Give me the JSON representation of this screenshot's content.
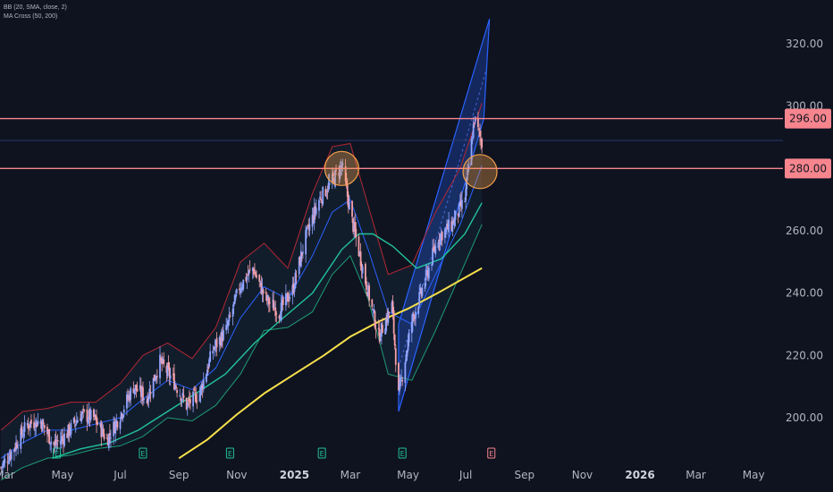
{
  "legend": {
    "line1": "BB (20, SMA, close, 2)",
    "line2": "MA Cross (50, 200)"
  },
  "colors": {
    "background": "#0f1320",
    "resistance": "#f7858e",
    "bb_upper": "#b22833",
    "bb_lower": "#1e9b74",
    "bb_basis": "#2962ff",
    "ma50": "#22c39a",
    "ma200": "#f7e04b",
    "channel": "#2962ff",
    "circle": "#f5a04a",
    "candle_up": "#90a4ff",
    "candle_down": "#f5a0a8"
  },
  "chart_data": {
    "type": "candlestick",
    "title": "",
    "xlabel": "",
    "ylabel": "",
    "ylim": [
      182,
      332
    ],
    "y_ticks": [
      200,
      220,
      240,
      260,
      280,
      300,
      320
    ],
    "y_tick_labels": [
      "200.00",
      "220.00",
      "240.00",
      "260.00",
      "280.00",
      "300.00",
      "320.00"
    ],
    "x_ticks": [
      {
        "label": "Mar",
        "date": "2024-03-01"
      },
      {
        "label": "May",
        "date": "2024-05-01"
      },
      {
        "label": "Jul",
        "date": "2024-07-01"
      },
      {
        "label": "Sep",
        "date": "2024-09-01"
      },
      {
        "label": "Nov",
        "date": "2024-11-01"
      },
      {
        "label": "2025",
        "date": "2025-01-01",
        "bold": true
      },
      {
        "label": "Mar",
        "date": "2025-03-01"
      },
      {
        "label": "May",
        "date": "2025-05-01"
      },
      {
        "label": "Jul",
        "date": "2025-07-01"
      },
      {
        "label": "Sep",
        "date": "2025-09-01"
      },
      {
        "label": "Nov",
        "date": "2025-11-01"
      },
      {
        "label": "2026",
        "date": "2026-01-01",
        "bold": true
      },
      {
        "label": "Mar",
        "date": "2026-03-01"
      },
      {
        "label": "May",
        "date": "2026-05-01"
      }
    ],
    "x_range": [
      "2024-02-25",
      "2026-06-01"
    ],
    "close_path": [
      [
        "2024-02-26",
        184
      ],
      [
        "2024-03-10",
        190
      ],
      [
        "2024-03-25",
        198
      ],
      [
        "2024-04-08",
        199
      ],
      [
        "2024-04-22",
        191
      ],
      [
        "2024-05-06",
        195
      ],
      [
        "2024-05-20",
        201
      ],
      [
        "2024-06-03",
        200
      ],
      [
        "2024-06-17",
        193
      ],
      [
        "2024-07-01",
        201
      ],
      [
        "2024-07-15",
        210
      ],
      [
        "2024-07-29",
        206
      ],
      [
        "2024-08-12",
        218
      ],
      [
        "2024-08-26",
        212
      ],
      [
        "2024-09-09",
        204
      ],
      [
        "2024-09-23",
        208
      ],
      [
        "2024-10-07",
        222
      ],
      [
        "2024-10-21",
        228
      ],
      [
        "2024-11-04",
        242
      ],
      [
        "2024-11-18",
        248
      ],
      [
        "2024-12-02",
        238
      ],
      [
        "2024-12-16",
        234
      ],
      [
        "2024-12-30",
        241
      ],
      [
        "2025-01-13",
        258
      ],
      [
        "2025-01-27",
        270
      ],
      [
        "2025-02-10",
        276
      ],
      [
        "2025-02-20",
        281
      ],
      [
        "2025-03-03",
        263
      ],
      [
        "2025-03-17",
        244
      ],
      [
        "2025-03-31",
        226
      ],
      [
        "2025-04-14",
        236
      ],
      [
        "2025-04-21",
        207
      ],
      [
        "2025-05-05",
        231
      ],
      [
        "2025-05-19",
        244
      ],
      [
        "2025-06-02",
        258
      ],
      [
        "2025-06-16",
        262
      ],
      [
        "2025-06-30",
        270
      ],
      [
        "2025-07-10",
        296
      ],
      [
        "2025-07-18",
        288
      ]
    ],
    "series": [
      {
        "name": "BB upper",
        "values": [
          [
            "2024-02-26",
            196
          ],
          [
            "2024-03-20",
            202
          ],
          [
            "2024-04-15",
            203
          ],
          [
            "2024-05-10",
            205
          ],
          [
            "2024-06-05",
            205
          ],
          [
            "2024-07-01",
            211
          ],
          [
            "2024-07-25",
            220
          ],
          [
            "2024-08-20",
            224
          ],
          [
            "2024-09-15",
            219
          ],
          [
            "2024-10-10",
            229
          ],
          [
            "2024-11-05",
            250
          ],
          [
            "2024-11-30",
            256
          ],
          [
            "2024-12-25",
            248
          ],
          [
            "2025-01-20",
            272
          ],
          [
            "2025-02-10",
            287
          ],
          [
            "2025-03-01",
            288
          ],
          [
            "2025-03-20",
            268
          ],
          [
            "2025-04-10",
            246
          ],
          [
            "2025-05-05",
            249
          ],
          [
            "2025-05-30",
            266
          ],
          [
            "2025-06-25",
            280
          ],
          [
            "2025-07-18",
            301
          ]
        ]
      },
      {
        "name": "BB basis",
        "values": [
          [
            "2024-02-26",
            187
          ],
          [
            "2024-03-20",
            192
          ],
          [
            "2024-04-15",
            196
          ],
          [
            "2024-05-10",
            196
          ],
          [
            "2024-06-05",
            198
          ],
          [
            "2024-07-01",
            200
          ],
          [
            "2024-07-25",
            206
          ],
          [
            "2024-08-20",
            212
          ],
          [
            "2024-09-15",
            209
          ],
          [
            "2024-10-10",
            216
          ],
          [
            "2024-11-05",
            232
          ],
          [
            "2024-11-30",
            242
          ],
          [
            "2024-12-25",
            238
          ],
          [
            "2025-01-20",
            252
          ],
          [
            "2025-02-10",
            266
          ],
          [
            "2025-03-01",
            270
          ],
          [
            "2025-03-20",
            254
          ],
          [
            "2025-04-10",
            234
          ],
          [
            "2025-05-05",
            230
          ],
          [
            "2025-05-30",
            246
          ],
          [
            "2025-06-25",
            262
          ],
          [
            "2025-07-18",
            281
          ]
        ]
      },
      {
        "name": "BB lower",
        "values": [
          [
            "2024-02-26",
            180
          ],
          [
            "2024-03-20",
            184
          ],
          [
            "2024-04-15",
            187
          ],
          [
            "2024-05-10",
            188
          ],
          [
            "2024-06-05",
            190
          ],
          [
            "2024-07-01",
            191
          ],
          [
            "2024-07-25",
            194
          ],
          [
            "2024-08-20",
            200
          ],
          [
            "2024-09-15",
            199
          ],
          [
            "2024-10-10",
            204
          ],
          [
            "2024-11-05",
            214
          ],
          [
            "2024-11-30",
            228
          ],
          [
            "2024-12-25",
            229
          ],
          [
            "2025-01-20",
            234
          ],
          [
            "2025-02-10",
            246
          ],
          [
            "2025-03-01",
            252
          ],
          [
            "2025-03-20",
            238
          ],
          [
            "2025-04-10",
            214
          ],
          [
            "2025-05-05",
            212
          ],
          [
            "2025-05-30",
            228
          ],
          [
            "2025-06-25",
            246
          ],
          [
            "2025-07-18",
            262
          ]
        ]
      },
      {
        "name": "MA 50",
        "values": [
          [
            "2024-04-20",
            187
          ],
          [
            "2024-05-20",
            190
          ],
          [
            "2024-06-20",
            192
          ],
          [
            "2024-07-20",
            196
          ],
          [
            "2024-08-20",
            202
          ],
          [
            "2024-09-20",
            208
          ],
          [
            "2024-10-20",
            214
          ],
          [
            "2024-11-20",
            224
          ],
          [
            "2024-12-20",
            232
          ],
          [
            "2025-01-20",
            240
          ],
          [
            "2025-02-20",
            254
          ],
          [
            "2025-03-10",
            259
          ],
          [
            "2025-03-25",
            259
          ],
          [
            "2025-04-15",
            255
          ],
          [
            "2025-05-10",
            248
          ],
          [
            "2025-06-05",
            251
          ],
          [
            "2025-06-30",
            259
          ],
          [
            "2025-07-18",
            269
          ]
        ]
      },
      {
        "name": "MA 200",
        "values": [
          [
            "2024-09-01",
            187
          ],
          [
            "2024-10-01",
            193
          ],
          [
            "2024-11-01",
            201
          ],
          [
            "2024-12-01",
            208
          ],
          [
            "2025-01-01",
            214
          ],
          [
            "2025-02-01",
            220
          ],
          [
            "2025-03-01",
            226
          ],
          [
            "2025-04-01",
            231
          ],
          [
            "2025-05-01",
            235
          ],
          [
            "2025-06-01",
            240
          ],
          [
            "2025-07-18",
            248
          ]
        ]
      }
    ],
    "annotations": {
      "horizontal_lines": [
        {
          "value": 296,
          "label": "296.00"
        },
        {
          "value": 280,
          "label": "280.00"
        }
      ],
      "channel": {
        "lower_start": [
          "2025-04-21",
          202
        ],
        "lower_end": [
          "2025-07-20",
          296
        ],
        "upper_start": [
          "2025-04-21",
          230
        ],
        "upper_end": [
          "2025-07-26",
          328
        ]
      },
      "circles": [
        {
          "date": "2025-02-20",
          "value": 280
        },
        {
          "date": "2025-07-16",
          "value": 279
        }
      ],
      "earnings_markers": [
        {
          "label": "E",
          "date": "2024-04-25"
        },
        {
          "label": "E",
          "date": "2024-07-25"
        },
        {
          "label": "E",
          "date": "2024-10-25"
        },
        {
          "label": "E",
          "date": "2025-01-30"
        },
        {
          "label": "E",
          "date": "2025-04-25"
        },
        {
          "label": "E",
          "date": "2025-07-28",
          "upcoming": true
        }
      ]
    }
  }
}
